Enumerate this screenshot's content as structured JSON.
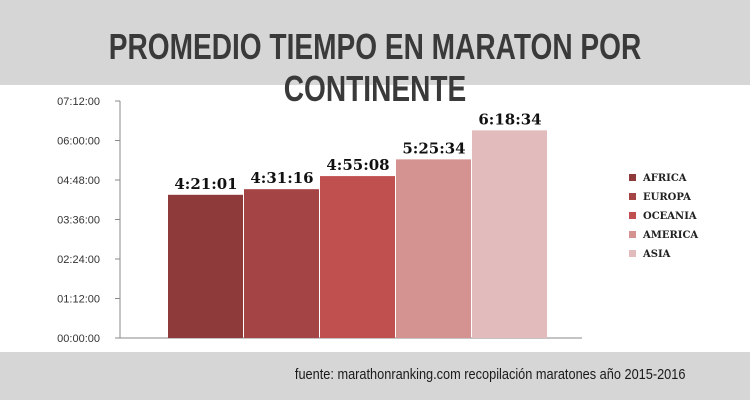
{
  "header": {
    "title": "PROMEDIO TIEMPO EN MARATON POR CONTINENTE"
  },
  "footer": {
    "source": "fuente: marathonranking.com recopilación maratones año 2015-2016"
  },
  "chart_data": {
    "type": "bar",
    "title": "PROMEDIO TIEMPO EN MARATON POR CONTINENTE",
    "xlabel": "",
    "ylabel": "",
    "categories": [
      "AFRICA",
      "EUROPA",
      "OCEANIA",
      "AMERICA",
      "ASIA"
    ],
    "values": [
      "4:21:01",
      "4:31:16",
      "4:55:08",
      "5:25:34",
      "6:18:34"
    ],
    "data_labels": [
      "4:21:01",
      "4:31:16",
      "4:55:08",
      "5:25:34",
      "6:18:34"
    ],
    "colors": [
      "#8e3a3a",
      "#a54444",
      "#c04f4f",
      "#d49291",
      "#e2bcbc"
    ],
    "y_ticks": [
      "00:00:00",
      "01:12:00",
      "02:24:00",
      "03:36:00",
      "04:48:00",
      "06:00:00",
      "07:12:00"
    ],
    "ylim": [
      "00:00:00",
      "07:12:00"
    ],
    "grid": false,
    "legend_position": "right"
  }
}
